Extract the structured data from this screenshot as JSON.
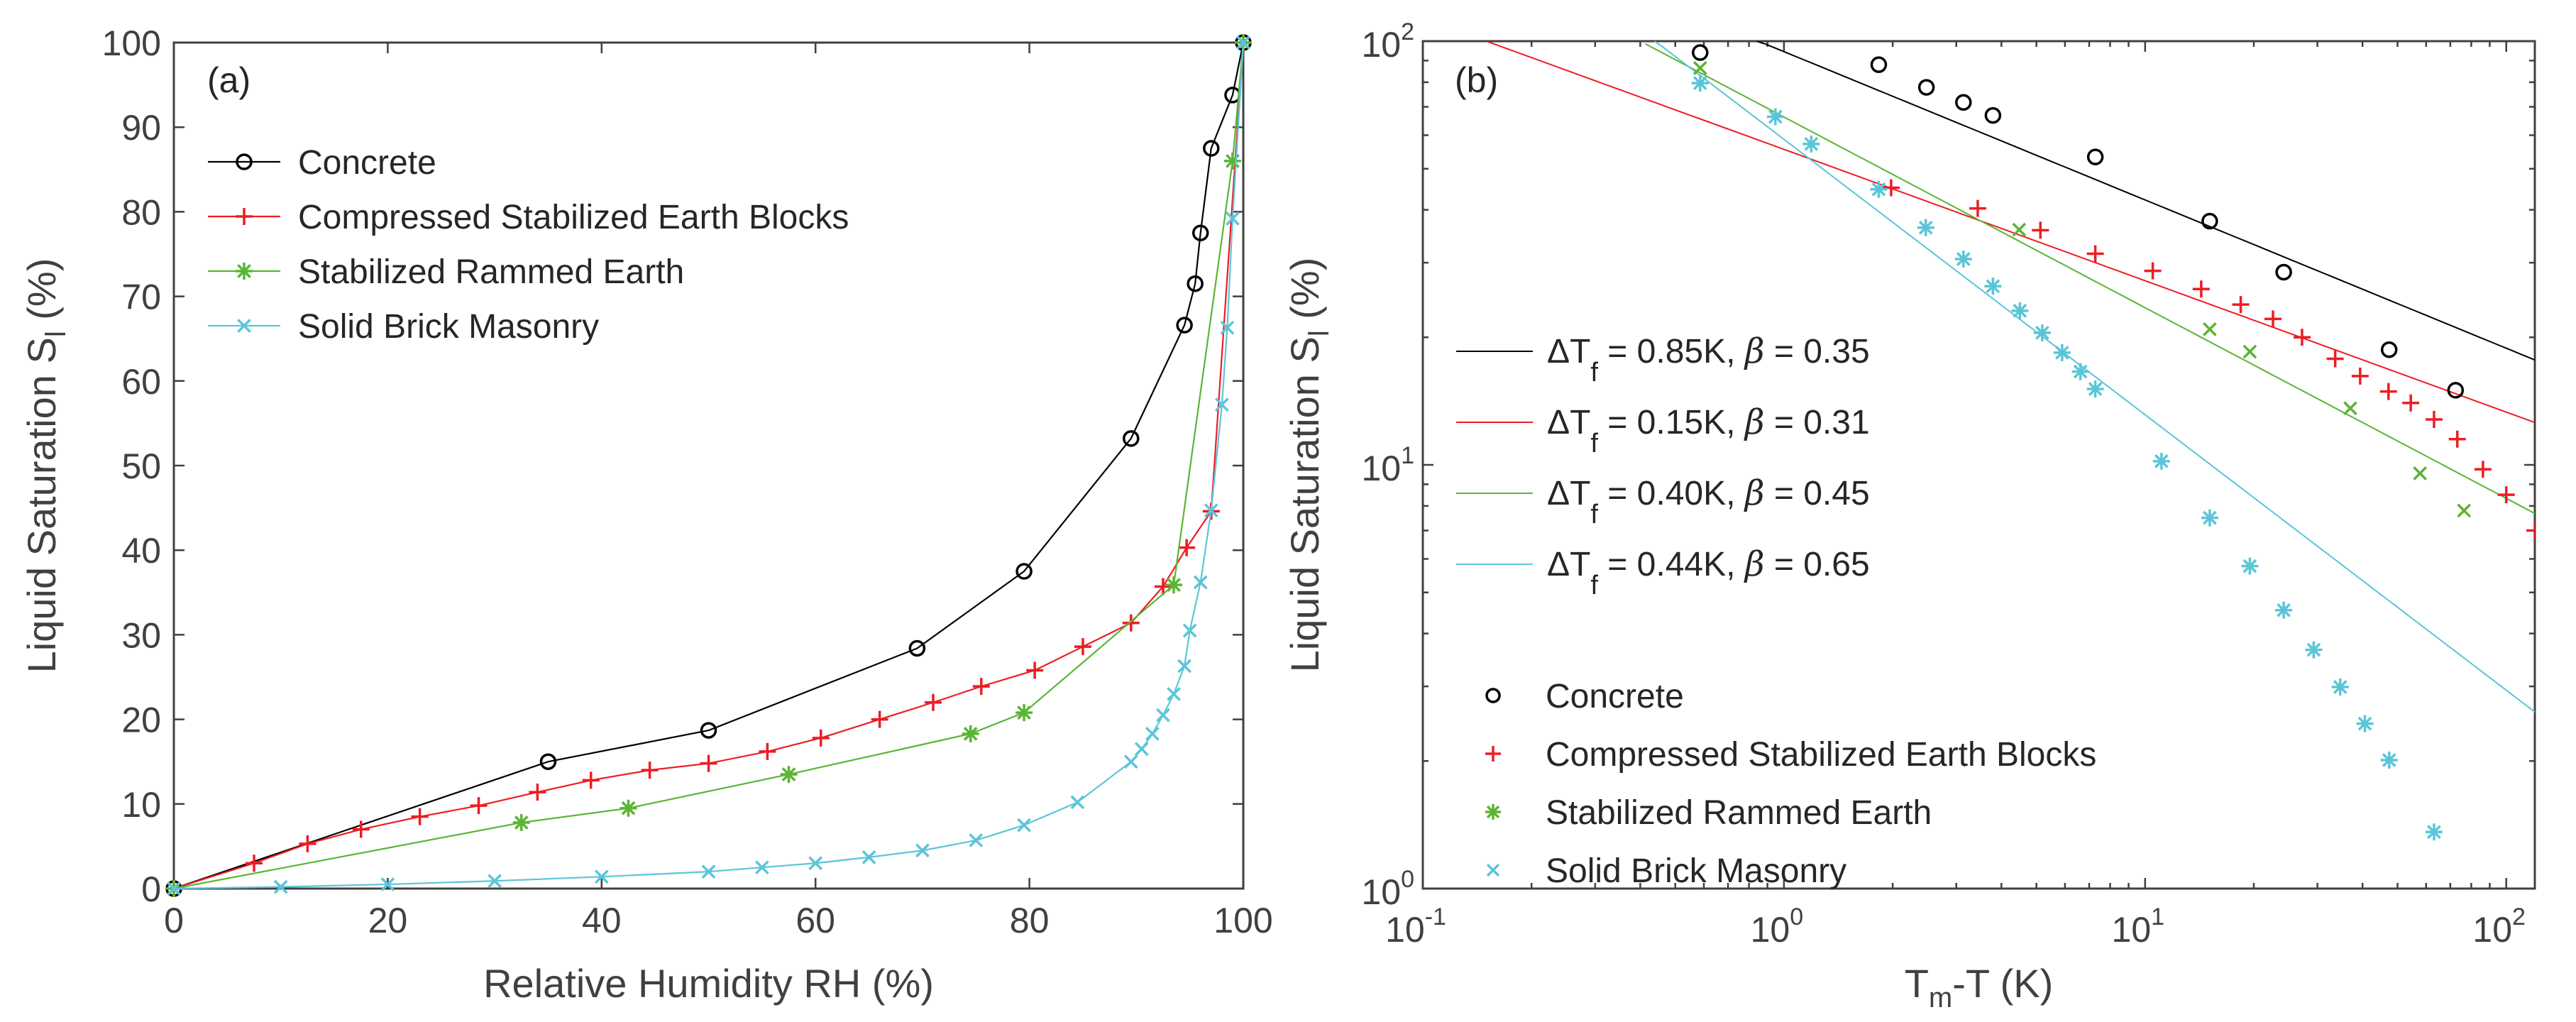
{
  "chart_data": [
    {
      "type": "line",
      "panel_label": "(a)",
      "xlabel": "Relative Humidity RH (%)",
      "ylabel": {
        "main": "Liquid Saturation S",
        "sub": "l",
        "suffix": " (%)"
      },
      "xlim": [
        0,
        100
      ],
      "ylim": [
        0,
        100
      ],
      "xticks": [
        "0",
        "20",
        "40",
        "60",
        "80",
        "100"
      ],
      "yticks": [
        "0",
        "10",
        "20",
        "30",
        "40",
        "50",
        "60",
        "70",
        "80",
        "90",
        "100"
      ],
      "legend_location": "top-left",
      "series": [
        {
          "name": "Concrete",
          "color": "#000000",
          "marker": "circle",
          "x": [
            0,
            35,
            50,
            69.5,
            79.5,
            89.5,
            94.5,
            95.5,
            96,
            97,
            99,
            100
          ],
          "y": [
            0,
            15,
            18.7,
            28.4,
            37.5,
            53.2,
            66.6,
            71.5,
            77.5,
            87.5,
            93.8,
            100
          ]
        },
        {
          "name": "Compressed Stabilized Earth Blocks",
          "color": "#ee1c24",
          "marker": "plus",
          "x": [
            0,
            7.5,
            12.5,
            17.5,
            23,
            28.5,
            34,
            39,
            44.5,
            50,
            55.5,
            60.5,
            66,
            71,
            75.5,
            80.5,
            85,
            89.5,
            92.5,
            94.7,
            97,
            100
          ],
          "y": [
            0,
            3,
            5.3,
            7,
            8.5,
            9.8,
            11.4,
            12.8,
            14,
            14.8,
            16.2,
            17.8,
            20,
            22,
            23.9,
            25.8,
            28.6,
            31.4,
            35.7,
            40.3,
            44.6,
            100
          ]
        },
        {
          "name": "Stabilized Rammed Earth",
          "color": "#5ab534",
          "marker": "asterisk",
          "x": [
            0,
            32.5,
            42.5,
            57.5,
            74.5,
            79.5,
            93.5,
            99,
            100
          ],
          "y": [
            0,
            7.8,
            9.5,
            13.5,
            18.3,
            20.8,
            35.9,
            86,
            100
          ]
        },
        {
          "name": "Solid Brick Masonry",
          "color": "#5bc5d8",
          "marker": "cross",
          "x": [
            0,
            10,
            20,
            30,
            40,
            50,
            55,
            60,
            65,
            70,
            75,
            79.5,
            84.5,
            89.5,
            90.5,
            91.5,
            92.5,
            93.5,
            94.5,
            95,
            96,
            97,
            98,
            98.5,
            99,
            100
          ],
          "y": [
            0,
            0.2,
            0.5,
            0.9,
            1.4,
            2,
            2.5,
            3,
            3.7,
            4.5,
            5.7,
            7.5,
            10.2,
            15,
            16.5,
            18.3,
            20.5,
            23,
            26.3,
            30.5,
            36.2,
            44.7,
            57.2,
            66.3,
            79.2,
            100
          ]
        }
      ]
    },
    {
      "type": "scatter",
      "panel_label": "(b)",
      "xscale": "log",
      "yscale": "log",
      "xlabel": {
        "main": "T",
        "sub": "m",
        "suffix": "-T (K)"
      },
      "ylabel": {
        "main": "Liquid Saturation S",
        "sub": "l",
        "suffix": " (%)"
      },
      "xlim": [
        0.1,
        120
      ],
      "ylim": [
        1,
        100
      ],
      "xticks": [
        {
          "base": "10",
          "exp": "-1"
        },
        {
          "base": "10",
          "exp": "0"
        },
        {
          "base": "10",
          "exp": "1"
        },
        {
          "base": "10",
          "exp": "2"
        }
      ],
      "yticks": [
        {
          "base": "10",
          "exp": "0"
        },
        {
          "base": "10",
          "exp": "1"
        },
        {
          "base": "10",
          "exp": "2"
        }
      ],
      "fits": [
        {
          "dT_label": "ΔT",
          "sub": "f",
          "value": " = 0.85K,  ",
          "beta_symbol": "β",
          "beta_value": " = 0.35",
          "dTf": 0.85,
          "beta": 0.35,
          "color": "#000000"
        },
        {
          "dT_label": "ΔT",
          "sub": "f",
          "value": " = 0.15K,  ",
          "beta_symbol": "β",
          "beta_value": " = 0.31",
          "dTf": 0.15,
          "beta": 0.31,
          "color": "#ee1c24"
        },
        {
          "dT_label": "ΔT",
          "sub": "f",
          "value": " = 0.40K,  ",
          "beta_symbol": "β",
          "beta_value": " = 0.45",
          "dTf": 0.4,
          "beta": 0.45,
          "color": "#5ab534"
        },
        {
          "dT_label": "ΔT",
          "sub": "f",
          "value": " = 0.44K,  ",
          "beta_symbol": "β",
          "beta_value": " = 0.65",
          "dTf": 0.44,
          "beta": 0.65,
          "color": "#5bc5d8"
        }
      ],
      "legend_location": "left",
      "series": [
        {
          "name": "Concrete",
          "color": "#000000",
          "marker": "circle",
          "plot_marker": "circle",
          "x": [
            0.586,
            1.83,
            2.48,
            3.14,
            3.79,
            7.28,
            15.1,
            24.2,
            47.4,
            72.4
          ],
          "y": [
            94,
            88,
            77.8,
            71.7,
            66.8,
            53.3,
            37.6,
            28.5,
            18.7,
            15.0
          ]
        },
        {
          "name": "Compressed Stabilized Earth Blocks",
          "color": "#ee1c24",
          "marker": "plus",
          "plot_marker": "plus",
          "x": [
            1.98,
            3.44,
            5.13,
            7.28,
            10.5,
            14.3,
            18.4,
            22.6,
            27.2,
            33.6,
            39.4,
            47.2,
            54.4,
            63.1,
            73.2,
            86.2,
            100,
            120
          ],
          "y": [
            45.1,
            40.3,
            35.8,
            31.5,
            28.7,
            26.0,
            23.9,
            22.1,
            20.0,
            17.8,
            16.2,
            14.9,
            14.0,
            12.8,
            11.5,
            9.76,
            8.5,
            7.0
          ]
        },
        {
          "name": "Stabilized Rammed Earth",
          "color": "#5ab534",
          "marker": "asterisk",
          "plot_marker": "cross",
          "x": [
            0.586,
            4.48,
            15.1,
            19.5,
            37,
            57.7,
            76.4
          ],
          "y": [
            86.4,
            35.9,
            20.9,
            18.5,
            13.6,
            9.55,
            7.8
          ]
        },
        {
          "name": "Solid Brick Masonry",
          "color": "#5bc5d8",
          "marker": "cross",
          "plot_marker": "asterisk",
          "x": [
            0.586,
            0.947,
            1.19,
            1.83,
            2.47,
            3.14,
            3.79,
            4.5,
            5.19,
            5.89,
            6.62,
            7.28,
            11.1,
            15.1,
            19.5,
            24.2,
            29.3,
            34.7,
            40.6,
            47.4,
            63.1
          ],
          "y": [
            79.6,
            66.3,
            57.2,
            44.7,
            36.3,
            30.6,
            26.4,
            23.1,
            20.5,
            18.4,
            16.6,
            15.1,
            10.2,
            7.5,
            5.77,
            4.54,
            3.66,
            2.99,
            2.45,
            2.01,
            1.36
          ]
        }
      ]
    }
  ]
}
